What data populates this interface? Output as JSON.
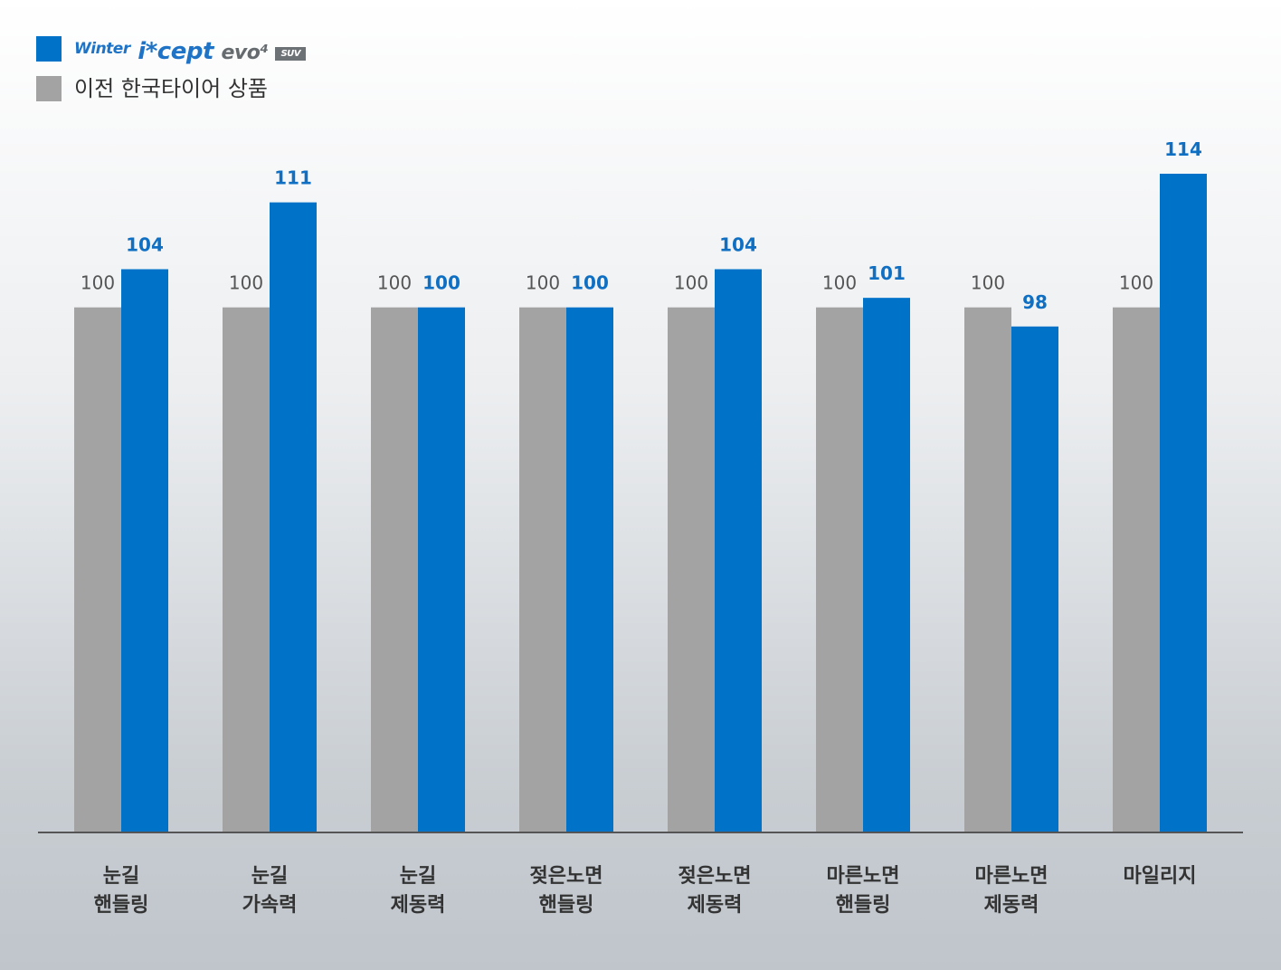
{
  "legend": {
    "series_a": {
      "brand_main": "Winter",
      "brand_product": "i*cept",
      "brand_evo": "evo⁴",
      "badge": "SUV",
      "color": "#0073c9"
    },
    "series_b": {
      "label": "이전 한국타이어 상품",
      "color": "#a3a3a3"
    }
  },
  "chart_data": {
    "type": "bar",
    "categories": [
      [
        "눈길",
        "핸들링"
      ],
      [
        "눈길",
        "가속력"
      ],
      [
        "눈길",
        "제동력"
      ],
      [
        "젖은노면",
        "핸들링"
      ],
      [
        "젖은노면",
        "제동력"
      ],
      [
        "마른노면",
        "핸들링"
      ],
      [
        "마른노면",
        "제동력"
      ],
      [
        "마일리지"
      ]
    ],
    "series": [
      {
        "name": "이전 한국타이어 상품",
        "values": [
          100,
          100,
          100,
          100,
          100,
          100,
          100,
          100
        ],
        "color": "#a3a3a3",
        "label_color": "#555555",
        "label_weight": "normal"
      },
      {
        "name": "Winter i*cept evo⁴ SUV",
        "values": [
          104,
          111,
          100,
          100,
          104,
          101,
          98,
          114
        ],
        "color": "#0073c9",
        "label_color": "#0f6fc3",
        "label_weight": "bold"
      }
    ],
    "ylim": [
      45,
      114
    ],
    "grid": false,
    "legend_position": "top-left"
  }
}
